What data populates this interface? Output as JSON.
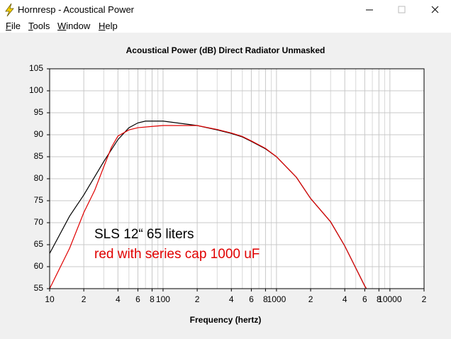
{
  "window": {
    "title": "Hornresp - Acoustical Power"
  },
  "menu": [
    "File",
    "Tools",
    "Window",
    "Help"
  ],
  "chart_data": {
    "type": "line",
    "title": "Acoustical Power (dB)   Direct Radiator   Unmasked",
    "x_label": "Frequency (hertz)",
    "log_x": true,
    "grid": true,
    "xlim": [
      10,
      20000
    ],
    "ylim": [
      55,
      105
    ],
    "yticks": [
      55,
      60,
      65,
      70,
      75,
      80,
      85,
      90,
      95,
      100,
      105
    ],
    "xticks": [
      10,
      {
        "value": 20,
        "label": "2"
      },
      {
        "value": 40,
        "label": "4"
      },
      {
        "value": 60,
        "label": "6"
      },
      {
        "value": 80,
        "label": "8"
      },
      100,
      {
        "value": 200,
        "label": "2"
      },
      {
        "value": 400,
        "label": "4"
      },
      {
        "value": 600,
        "label": "6"
      },
      {
        "value": 800,
        "label": "8"
      },
      1000,
      {
        "value": 2000,
        "label": "2"
      },
      {
        "value": 4000,
        "label": "4"
      },
      {
        "value": 6000,
        "label": "6"
      },
      {
        "value": 8000,
        "label": "8"
      },
      10000,
      {
        "value": 20000,
        "label": "2"
      }
    ],
    "x_minor_grid": [
      30,
      50,
      70,
      90,
      300,
      500,
      700,
      900,
      3000,
      5000,
      7000,
      9000
    ],
    "annotations": [
      {
        "text": "SLS 12“ 65 liters",
        "color": "#000000"
      },
      {
        "text": "red with series cap 1000 uF",
        "color": "#e00000"
      }
    ],
    "series": [
      {
        "color": "#000000",
        "x": [
          10,
          15,
          20,
          30,
          40,
          50,
          60,
          70,
          100,
          200,
          300,
          400,
          500,
          600,
          800,
          1000,
          1500,
          2000,
          3000,
          4000,
          5000,
          6000,
          6200
        ],
        "values": [
          63,
          71.5,
          76.3,
          83.9,
          88.9,
          91.6,
          92.7,
          93.1,
          93.1,
          92.1,
          91.1,
          90.3,
          89.5,
          88.5,
          86.8,
          85,
          80.3,
          75.5,
          70.2,
          64.7,
          59.7,
          55.6,
          55
        ]
      },
      {
        "color": "#e00000",
        "x": [
          10,
          15,
          20,
          25,
          30,
          35,
          40,
          50,
          60,
          80,
          100,
          200,
          300,
          400,
          500,
          600,
          800,
          1000,
          1500,
          2000,
          3000,
          4000,
          5000,
          6000,
          6200
        ],
        "values": [
          55,
          64.2,
          72.3,
          77.4,
          82.7,
          87.1,
          89.7,
          91.1,
          91.6,
          91.9,
          92.1,
          92.1,
          91.2,
          90.4,
          89.6,
          88.6,
          86.9,
          85,
          80.3,
          75.5,
          70.2,
          64.7,
          59.7,
          55.6,
          55
        ]
      }
    ]
  }
}
